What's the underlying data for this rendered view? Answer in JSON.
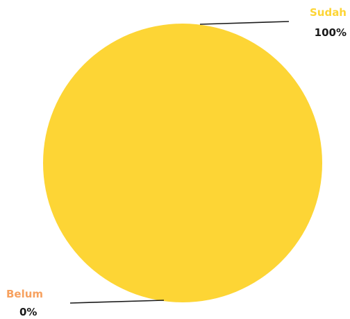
{
  "chart_data": {
    "type": "pie",
    "slices": [
      {
        "label": "Sudah",
        "value": 100,
        "display": "100%",
        "color": "#FDD535"
      },
      {
        "label": "Belum",
        "value": 0,
        "display": "0%",
        "color": "#F7A15F"
      }
    ],
    "legend": "none",
    "value_text_color": "#1a1a1a",
    "leader_line_color": "#1a1a1a"
  }
}
